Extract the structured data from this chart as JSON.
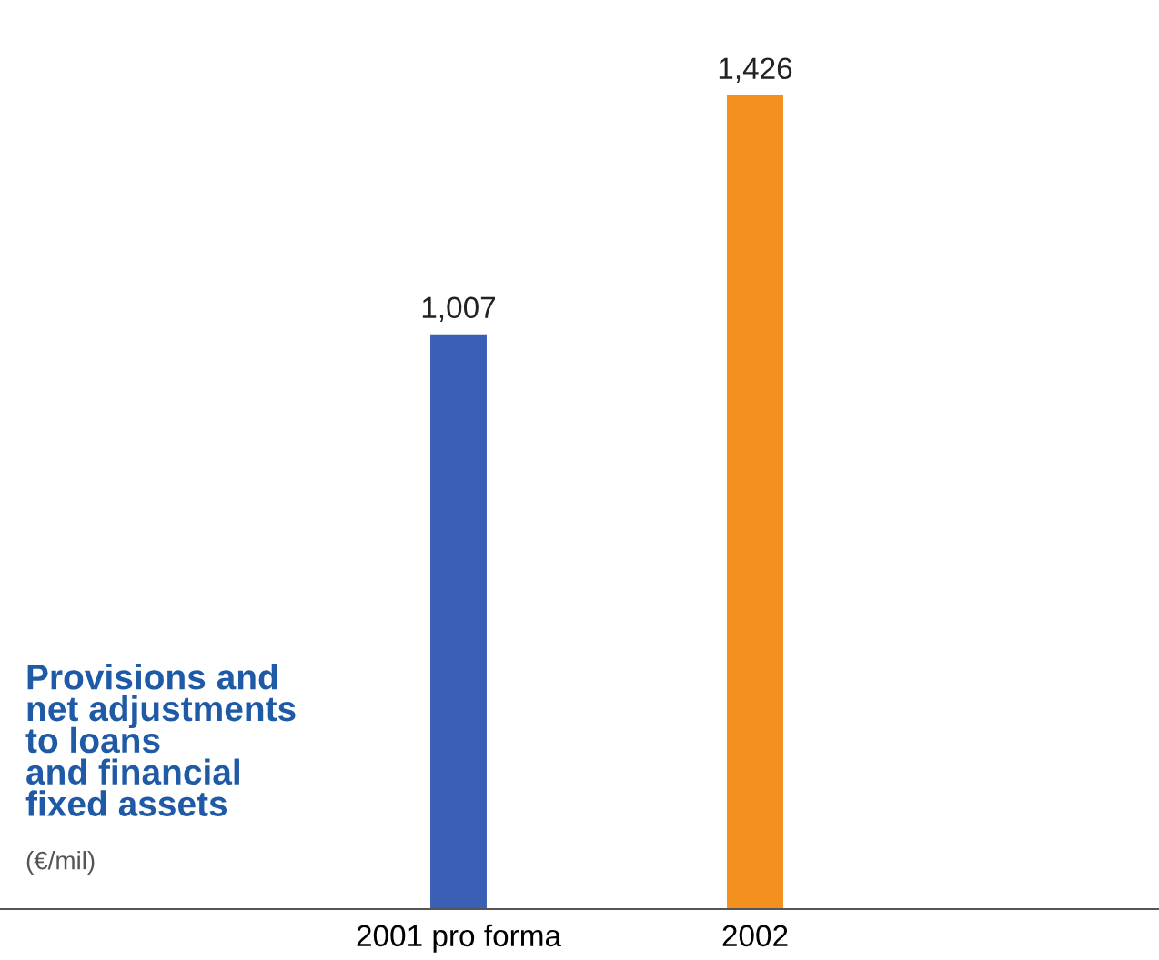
{
  "chart_data": {
    "type": "bar",
    "title": "Provisions and\nnet adjustments\nto loans\nand financial\nfixed assets",
    "subtitle": "(€/mil)",
    "categories": [
      "2001 pro forma",
      "2002"
    ],
    "values": [
      1007,
      1426
    ],
    "colors": [
      "#3a5fb4",
      "#f39020"
    ],
    "value_labels": [
      "1,007",
      "1,426"
    ],
    "grid": false,
    "legend": false
  }
}
